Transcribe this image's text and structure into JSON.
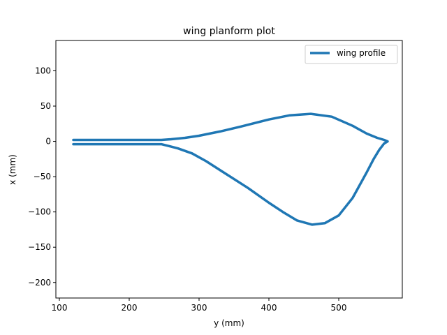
{
  "chart_data": {
    "type": "line",
    "title": "wing planform plot",
    "xlabel": "y (mm)",
    "ylabel": "x (mm)",
    "xlim": [
      95,
      591
    ],
    "ylim": [
      -222,
      143
    ],
    "xticks": [
      100,
      200,
      300,
      400,
      500
    ],
    "yticks": [
      100,
      50,
      0,
      -50,
      -100,
      -150,
      -200
    ],
    "ytick_labels": [
      "100",
      "50",
      "0",
      "−50",
      "−100",
      "−150",
      "−200"
    ],
    "grid": false,
    "legend_position": "top-right",
    "color": "#1f77b4",
    "series": [
      {
        "name": "wing profile",
        "x": [
          120,
          200,
          246,
          260,
          280,
          300,
          330,
          360,
          400,
          430,
          460,
          490,
          520,
          540,
          555,
          565,
          570,
          565,
          558,
          550,
          540,
          520,
          500,
          480,
          462,
          440,
          420,
          400,
          370,
          340,
          310,
          290,
          270,
          258,
          246,
          200,
          120
        ],
        "y": [
          2,
          2,
          2,
          3,
          5,
          8,
          14,
          21,
          31,
          37,
          39,
          35,
          22,
          11,
          5,
          2,
          0,
          -3,
          -12,
          -25,
          -44,
          -80,
          -105,
          -116,
          -118,
          -112,
          -100,
          -87,
          -66,
          -47,
          -28,
          -17,
          -10,
          -7,
          -4,
          -4,
          -4
        ]
      }
    ]
  }
}
